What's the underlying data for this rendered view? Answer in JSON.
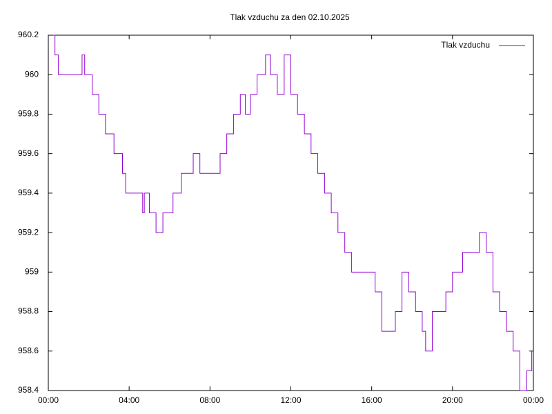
{
  "chart_data": {
    "type": "line",
    "title": "Tlak vzduchu za den 02.10.2025",
    "steps": true,
    "legend": "top-right",
    "x": [
      0.25,
      0.33,
      0.5,
      0.75,
      1,
      1.33,
      1.67,
      1.8,
      2,
      2.17,
      2.5,
      2.83,
      3.25,
      3.67,
      3.83,
      4,
      4.33,
      4.67,
      4.75,
      5,
      5.33,
      5.67,
      6.17,
      6.58,
      7.17,
      7.5,
      8,
      8.5,
      8.83,
      9.17,
      9.5,
      9.75,
      10,
      10.33,
      10.75,
      11,
      11.33,
      11.67,
      12,
      12.33,
      12.67,
      13,
      13.33,
      13.67,
      14,
      14.33,
      14.67,
      15,
      15.5,
      15.83,
      16.17,
      16.5,
      16.83,
      17.17,
      17.5,
      17.83,
      18.17,
      18.5,
      18.67,
      19,
      19.33,
      19.67,
      20,
      20.5,
      21,
      21.33,
      21.67,
      22,
      22.33,
      22.67,
      23,
      23.33,
      23.67,
      23.92
    ],
    "series": [
      {
        "name": "Tlak vzduchu",
        "color": "#9400d3",
        "values": [
          960.2,
          960.1,
          960,
          960,
          960,
          960,
          960.1,
          960,
          960,
          959.9,
          959.8,
          959.7,
          959.6,
          959.5,
          959.4,
          959.4,
          959.4,
          959.3,
          959.4,
          959.3,
          959.2,
          959.3,
          959.4,
          959.5,
          959.6,
          959.5,
          959.5,
          959.6,
          959.7,
          959.8,
          959.9,
          959.8,
          959.9,
          960,
          960.1,
          960,
          959.9,
          960.1,
          959.9,
          959.8,
          959.7,
          959.6,
          959.5,
          959.4,
          959.3,
          959.2,
          959.1,
          959,
          959,
          959,
          958.9,
          958.7,
          958.7,
          958.8,
          959,
          958.9,
          958.8,
          958.7,
          958.6,
          958.8,
          958.8,
          958.9,
          959,
          959.1,
          959.1,
          959.2,
          959.1,
          958.9,
          958.8,
          958.7,
          958.6,
          958.4,
          958.5,
          958.6
        ]
      }
    ],
    "xlim": [
      0,
      24
    ],
    "xticks": [
      {
        "value": 0,
        "label": "00:00"
      },
      {
        "value": 4,
        "label": "04:00"
      },
      {
        "value": 8,
        "label": "08:00"
      },
      {
        "value": 12,
        "label": "12:00"
      },
      {
        "value": 16,
        "label": "16:00"
      },
      {
        "value": 20,
        "label": "20:00"
      },
      {
        "value": 24,
        "label": "00:00"
      }
    ],
    "ylim": [
      958.4,
      960.2
    ],
    "yticks": [
      958.4,
      958.6,
      958.8,
      959,
      959.2,
      959.4,
      959.6,
      959.8,
      960,
      960.2
    ]
  }
}
